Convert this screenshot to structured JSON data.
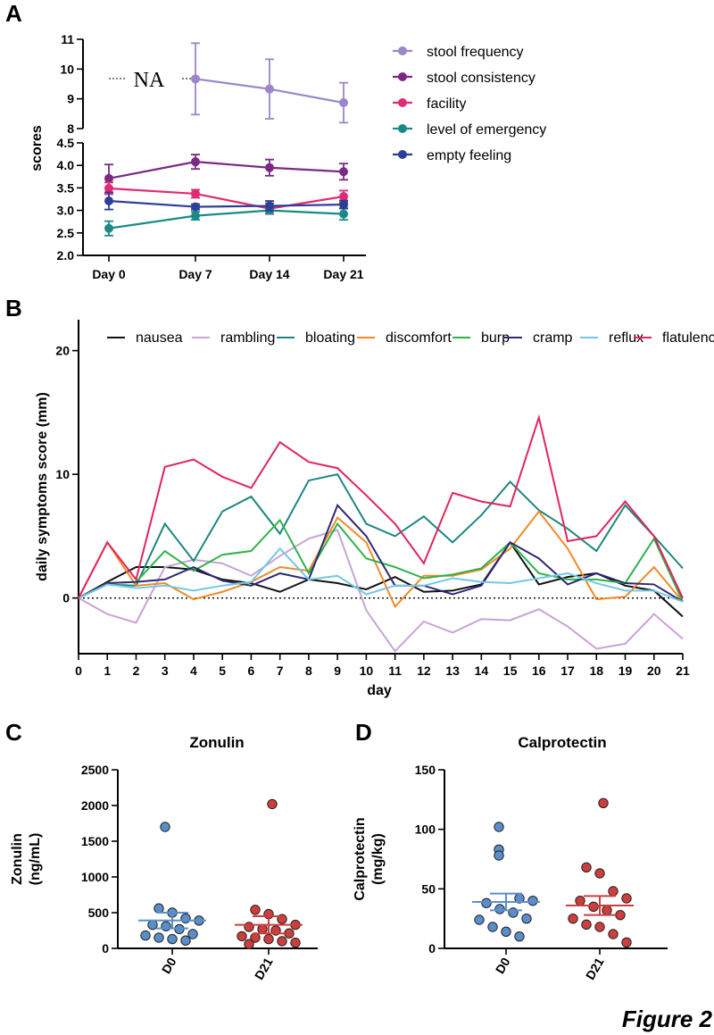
{
  "figure_label": "Figure 2",
  "chart_data": [
    {
      "panel": "A",
      "type": "line",
      "ylabel": "scores",
      "categories": [
        "Day 0",
        "Day 7",
        "Day 14",
        "Day 21"
      ],
      "upper_ylim": [
        8,
        11
      ],
      "upper_yticks": [
        "8",
        "9",
        "10",
        "11"
      ],
      "lower_ylim": [
        2.0,
        4.5
      ],
      "lower_yticks": [
        "2.0",
        "2.5",
        "3.0",
        "3.5",
        "4.0",
        "4.5"
      ],
      "na_label": "NA",
      "series": [
        {
          "name": "stool frequency",
          "color": "#9b86c9",
          "panel_part": "upper",
          "values": [
            null,
            9.67,
            9.33,
            8.87
          ],
          "err": [
            null,
            1.2,
            1.0,
            0.67
          ]
        },
        {
          "name": "stool consistency",
          "color": "#7a2a82",
          "panel_part": "lower",
          "values": [
            3.71,
            4.08,
            3.95,
            3.86
          ],
          "err": [
            0.31,
            0.16,
            0.18,
            0.18
          ]
        },
        {
          "name": "facility",
          "color": "#e02a74",
          "panel_part": "lower",
          "values": [
            3.49,
            3.37,
            3.04,
            3.31
          ],
          "err": [
            0.13,
            0.09,
            0.12,
            0.13
          ]
        },
        {
          "name": "level of emergency",
          "color": "#1b8a86",
          "panel_part": "lower",
          "values": [
            2.6,
            2.88,
            3.0,
            2.92
          ],
          "err": [
            0.16,
            0.09,
            0.07,
            0.13
          ]
        },
        {
          "name": "empty feeling",
          "color": "#2c3f96",
          "panel_part": "lower",
          "values": [
            3.21,
            3.08,
            3.1,
            3.13
          ],
          "err": [
            0.19,
            0.06,
            0.11,
            0.09
          ]
        }
      ]
    },
    {
      "panel": "B",
      "type": "line",
      "xlabel": "day",
      "ylabel": "daily symptoms score (mm)",
      "xlim": [
        0,
        21
      ],
      "ylim": [
        -4.5,
        22.5
      ],
      "x": [
        0,
        1,
        2,
        3,
        4,
        5,
        6,
        7,
        8,
        9,
        10,
        11,
        12,
        13,
        14,
        15,
        16,
        17,
        18,
        19,
        20,
        21
      ],
      "yticks": [
        "0",
        "10",
        "20"
      ],
      "series": [
        {
          "name": "nausea",
          "color": "#111111",
          "values": [
            0,
            1.3,
            2.5,
            2.5,
            2.3,
            1.5,
            1.2,
            0.5,
            1.5,
            1.2,
            0.7,
            1.7,
            0.5,
            0.6,
            1.1,
            4.5,
            1.1,
            1.7,
            2.0,
            1.0,
            0.6,
            -1.5
          ]
        },
        {
          "name": "rambling",
          "color": "#c9a3d6",
          "values": [
            0,
            -1.3,
            -2.0,
            2.5,
            3.1,
            2.8,
            1.8,
            3.4,
            4.8,
            5.5,
            -1.0,
            -4.3,
            -1.9,
            -2.8,
            -1.7,
            -1.8,
            -0.9,
            -2.3,
            -4.1,
            -3.7,
            -1.3,
            -3.3
          ]
        },
        {
          "name": "bloating",
          "color": "#1e8580",
          "values": [
            0,
            1.1,
            1.0,
            6.0,
            3.0,
            7.0,
            8.2,
            5.2,
            9.5,
            10.0,
            6.0,
            5.0,
            6.6,
            4.5,
            6.7,
            9.4,
            7.1,
            5.6,
            3.8,
            7.5,
            5.0,
            2.4
          ]
        },
        {
          "name": "discomfort",
          "color": "#f08a26",
          "values": [
            0,
            4.5,
            1.0,
            1.2,
            -0.1,
            0.5,
            1.3,
            2.5,
            2.2,
            6.5,
            4.5,
            -0.7,
            1.8,
            1.8,
            2.3,
            4.0,
            7.0,
            4.0,
            -0.1,
            0.1,
            2.5,
            -0.3
          ]
        },
        {
          "name": "burp",
          "color": "#2db34a",
          "values": [
            0,
            1.2,
            1.3,
            3.8,
            2.2,
            3.5,
            3.8,
            6.3,
            2.0,
            6.0,
            3.2,
            2.5,
            1.6,
            1.9,
            2.4,
            4.5,
            2.0,
            1.5,
            1.5,
            1.2,
            4.8,
            -0.3
          ]
        },
        {
          "name": "cramp",
          "color": "#2f2a74",
          "values": [
            0,
            1.2,
            1.3,
            1.5,
            2.5,
            1.4,
            1.0,
            2.0,
            1.5,
            7.5,
            5.0,
            1.0,
            1.0,
            0.3,
            1.0,
            4.5,
            3.2,
            1.1,
            2.0,
            1.2,
            1.1,
            -0.3
          ]
        },
        {
          "name": "reflux",
          "color": "#74c8e4",
          "values": [
            0,
            1.1,
            0.8,
            1.0,
            0.6,
            1.0,
            1.3,
            4.0,
            1.5,
            1.8,
            0.3,
            1.0,
            1.0,
            1.6,
            1.3,
            1.2,
            1.6,
            2.0,
            1.2,
            0.6,
            0.6,
            -0.3
          ]
        },
        {
          "name": "flatulence",
          "color": "#e0245f",
          "values": [
            0,
            4.5,
            1.5,
            10.6,
            11.2,
            9.8,
            8.9,
            12.6,
            11.0,
            10.5,
            8.3,
            6.0,
            2.8,
            8.5,
            7.8,
            7.4,
            14.6,
            4.6,
            5.0,
            7.8,
            5.0,
            0
          ]
        }
      ]
    },
    {
      "panel": "C",
      "type": "scatter",
      "title": "Zonulin",
      "ylabel": "Zonulin\n(ng/mL)",
      "ylabel_line1": "Zonulin",
      "ylabel_line2": "(ng/mL)",
      "categories": [
        "D0",
        "D21"
      ],
      "ylim": [
        0,
        2500
      ],
      "yticks": [
        "0",
        "500",
        "1000",
        "1500",
        "2000",
        "2500"
      ],
      "groups": [
        {
          "name": "D0",
          "color": "#5b8ec9",
          "points": [
            1700,
            560,
            500,
            420,
            390,
            330,
            310,
            270,
            200,
            180,
            150,
            130,
            110
          ],
          "mean": 390,
          "sem": 110
        },
        {
          "name": "D21",
          "color": "#cc3f3f",
          "points": [
            2020,
            540,
            480,
            410,
            330,
            300,
            270,
            250,
            210,
            170,
            150,
            130,
            100,
            80,
            60
          ],
          "mean": 330,
          "sem": 120
        }
      ]
    },
    {
      "panel": "D",
      "type": "scatter",
      "title": "Calprotectin",
      "ylabel": "Calprotectin\n(mg/kg)",
      "ylabel_line1": "Calprotectin",
      "ylabel_line2": "(mg/kg)",
      "categories": [
        "D0",
        "D21"
      ],
      "ylim": [
        0,
        150
      ],
      "yticks": [
        "0",
        "50",
        "100",
        "150"
      ],
      "groups": [
        {
          "name": "D0",
          "color": "#5b8ec9",
          "points": [
            102,
            83,
            78,
            42,
            40,
            38,
            33,
            30,
            25,
            24,
            18,
            14,
            10
          ],
          "mean": 39,
          "sem": 7
        },
        {
          "name": "D21",
          "color": "#cc3f3f",
          "points": [
            122,
            68,
            63,
            48,
            42,
            40,
            35,
            32,
            28,
            25,
            20,
            18,
            12,
            5
          ],
          "mean": 36,
          "sem": 8
        }
      ]
    }
  ]
}
